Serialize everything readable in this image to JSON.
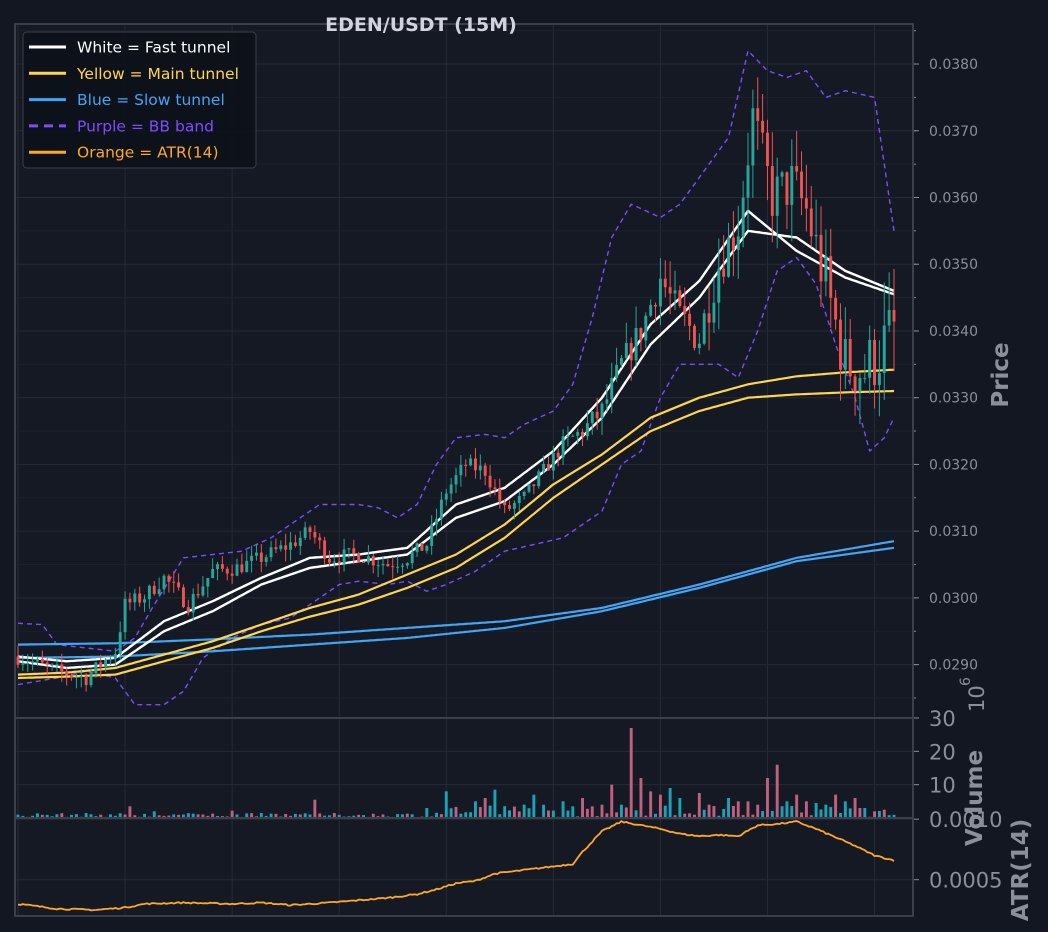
{
  "chart_data": {
    "type": "candlestick",
    "title": "EDEN/USDT (15M)",
    "price_axis": {
      "label": "Price",
      "ylim": [
        0.0282,
        0.0386
      ],
      "ticks": [
        "0.0290",
        "0.0300",
        "0.0310",
        "0.0320",
        "0.0330",
        "0.0340",
        "0.0350",
        "0.0360",
        "0.0370",
        "0.0380"
      ]
    },
    "volume_axis": {
      "label": "Volume",
      "exponent_label": "10",
      "exponent": "6",
      "ylim": [
        0,
        30
      ],
      "ticks": [
        "10",
        "20",
        "30"
      ]
    },
    "atr_axis": {
      "label": "ATR(14)",
      "ylim": [
        0.0002,
        0.00101
      ],
      "ticks": [
        "0.0005",
        "0.0010"
      ]
    },
    "x_range": [
      0,
      180
    ],
    "legend": {
      "placement": "top-left",
      "items": [
        {
          "label": "White = Fast tunnel",
          "color": "#ffffff",
          "dash": false
        },
        {
          "label": "Yellow = Main tunnel",
          "color": "#ffd54f",
          "dash": false
        },
        {
          "label": "Blue = Slow tunnel",
          "color": "#42a5f5",
          "dash": false
        },
        {
          "label": "Purple = BB band",
          "color": "#7c4dff",
          "dash": true
        },
        {
          "label": "Orange = ATR(14)",
          "color": "#ffa726",
          "dash": false
        }
      ]
    },
    "price_keypoints": [
      [
        0,
        0.02912
      ],
      [
        8,
        0.0289
      ],
      [
        14,
        0.0288
      ],
      [
        20,
        0.0292
      ],
      [
        22,
        0.0299
      ],
      [
        26,
        0.03002
      ],
      [
        30,
        0.0303
      ],
      [
        35,
        0.0299
      ],
      [
        40,
        0.0304
      ],
      [
        45,
        0.03045
      ],
      [
        50,
        0.0306
      ],
      [
        56,
        0.0308
      ],
      [
        60,
        0.031
      ],
      [
        64,
        0.0306
      ],
      [
        70,
        0.03065
      ],
      [
        76,
        0.0305
      ],
      [
        80,
        0.0306
      ],
      [
        84,
        0.0308
      ],
      [
        88,
        0.0316
      ],
      [
        92,
        0.032
      ],
      [
        96,
        0.0319
      ],
      [
        100,
        0.0313
      ],
      [
        104,
        0.0315
      ],
      [
        108,
        0.0319
      ],
      [
        112,
        0.0323
      ],
      [
        116,
        0.0325
      ],
      [
        120,
        0.0328
      ],
      [
        124,
        0.0335
      ],
      [
        128,
        0.034
      ],
      [
        132,
        0.0348
      ],
      [
        136,
        0.0342
      ],
      [
        140,
        0.0339
      ],
      [
        144,
        0.035
      ],
      [
        148,
        0.0356
      ],
      [
        151,
        0.0372
      ],
      [
        155,
        0.036
      ],
      [
        159,
        0.0362
      ],
      [
        162,
        0.0358
      ],
      [
        166,
        0.0347
      ],
      [
        170,
        0.0335
      ],
      [
        174,
        0.0334
      ],
      [
        178,
        0.0338
      ],
      [
        180,
        0.034
      ]
    ],
    "fast_upper": [
      [
        0,
        0.02912
      ],
      [
        10,
        0.02905
      ],
      [
        20,
        0.0291
      ],
      [
        30,
        0.02965
      ],
      [
        40,
        0.02995
      ],
      [
        50,
        0.0303
      ],
      [
        60,
        0.0306
      ],
      [
        70,
        0.03065
      ],
      [
        80,
        0.03075
      ],
      [
        90,
        0.0314
      ],
      [
        100,
        0.03165
      ],
      [
        110,
        0.0322
      ],
      [
        120,
        0.033
      ],
      [
        130,
        0.0341
      ],
      [
        140,
        0.03475
      ],
      [
        150,
        0.0358
      ],
      [
        160,
        0.0352
      ],
      [
        170,
        0.0348
      ],
      [
        180,
        0.03455
      ]
    ],
    "fast_lower": [
      [
        0,
        0.02905
      ],
      [
        10,
        0.02895
      ],
      [
        20,
        0.029
      ],
      [
        30,
        0.0295
      ],
      [
        40,
        0.0298
      ],
      [
        50,
        0.0302
      ],
      [
        60,
        0.03045
      ],
      [
        70,
        0.03055
      ],
      [
        80,
        0.03065
      ],
      [
        90,
        0.0312
      ],
      [
        100,
        0.03145
      ],
      [
        110,
        0.032
      ],
      [
        120,
        0.0327
      ],
      [
        130,
        0.0338
      ],
      [
        140,
        0.0345
      ],
      [
        150,
        0.0355
      ],
      [
        160,
        0.0354
      ],
      [
        170,
        0.0349
      ],
      [
        180,
        0.0346
      ]
    ],
    "main_upper": [
      [
        0,
        0.02885
      ],
      [
        10,
        0.02888
      ],
      [
        20,
        0.02895
      ],
      [
        30,
        0.02915
      ],
      [
        40,
        0.02935
      ],
      [
        50,
        0.0296
      ],
      [
        60,
        0.02985
      ],
      [
        70,
        0.03005
      ],
      [
        80,
        0.03035
      ],
      [
        90,
        0.03065
      ],
      [
        100,
        0.0311
      ],
      [
        110,
        0.0317
      ],
      [
        120,
        0.03215
      ],
      [
        130,
        0.0327
      ],
      [
        140,
        0.033
      ],
      [
        150,
        0.0332
      ],
      [
        160,
        0.03332
      ],
      [
        170,
        0.03338
      ],
      [
        180,
        0.03342
      ]
    ],
    "main_lower": [
      [
        0,
        0.0288
      ],
      [
        10,
        0.02882
      ],
      [
        20,
        0.02885
      ],
      [
        30,
        0.02905
      ],
      [
        40,
        0.02925
      ],
      [
        50,
        0.0295
      ],
      [
        60,
        0.02972
      ],
      [
        70,
        0.0299
      ],
      [
        80,
        0.03015
      ],
      [
        90,
        0.03045
      ],
      [
        100,
        0.0309
      ],
      [
        110,
        0.0315
      ],
      [
        120,
        0.032
      ],
      [
        130,
        0.0325
      ],
      [
        140,
        0.0328
      ],
      [
        150,
        0.033
      ],
      [
        160,
        0.03305
      ],
      [
        170,
        0.03308
      ],
      [
        180,
        0.0331
      ]
    ],
    "slow_upper": [
      [
        0,
        0.0293
      ],
      [
        20,
        0.02932
      ],
      [
        40,
        0.02938
      ],
      [
        60,
        0.02945
      ],
      [
        80,
        0.02955
      ],
      [
        100,
        0.02965
      ],
      [
        120,
        0.02985
      ],
      [
        140,
        0.0302
      ],
      [
        160,
        0.0306
      ],
      [
        180,
        0.03085
      ]
    ],
    "slow_lower": [
      [
        0,
        0.0291
      ],
      [
        20,
        0.02912
      ],
      [
        40,
        0.0292
      ],
      [
        60,
        0.0293
      ],
      [
        80,
        0.0294
      ],
      [
        100,
        0.02955
      ],
      [
        120,
        0.0298
      ],
      [
        140,
        0.03015
      ],
      [
        160,
        0.03055
      ],
      [
        180,
        0.03075
      ]
    ],
    "bb_upper": [
      [
        0,
        0.02962
      ],
      [
        5,
        0.0296
      ],
      [
        8,
        0.0293
      ],
      [
        20,
        0.0292
      ],
      [
        24,
        0.0294
      ],
      [
        28,
        0.0299
      ],
      [
        34,
        0.0306
      ],
      [
        40,
        0.03065
      ],
      [
        46,
        0.0307
      ],
      [
        52,
        0.0309
      ],
      [
        58,
        0.0312
      ],
      [
        62,
        0.0314
      ],
      [
        70,
        0.0314
      ],
      [
        74,
        0.03135
      ],
      [
        78,
        0.0312
      ],
      [
        82,
        0.0314
      ],
      [
        86,
        0.032
      ],
      [
        90,
        0.0324
      ],
      [
        96,
        0.03245
      ],
      [
        100,
        0.0324
      ],
      [
        104,
        0.0326
      ],
      [
        110,
        0.0328
      ],
      [
        114,
        0.0332
      ],
      [
        118,
        0.0342
      ],
      [
        122,
        0.0354
      ],
      [
        126,
        0.0359
      ],
      [
        132,
        0.0357
      ],
      [
        136,
        0.0359
      ],
      [
        140,
        0.0363
      ],
      [
        146,
        0.0369
      ],
      [
        150,
        0.0382
      ],
      [
        154,
        0.0379
      ],
      [
        158,
        0.0378
      ],
      [
        162,
        0.0379
      ],
      [
        166,
        0.0375
      ],
      [
        170,
        0.0376
      ],
      [
        176,
        0.0375
      ],
      [
        180,
        0.0355
      ]
    ],
    "bb_lower": [
      [
        0,
        0.0287
      ],
      [
        8,
        0.0288
      ],
      [
        14,
        0.0289
      ],
      [
        20,
        0.0288
      ],
      [
        24,
        0.0284
      ],
      [
        30,
        0.0284
      ],
      [
        34,
        0.0286
      ],
      [
        38,
        0.0291
      ],
      [
        44,
        0.0294
      ],
      [
        50,
        0.0296
      ],
      [
        56,
        0.0297
      ],
      [
        60,
        0.0299
      ],
      [
        66,
        0.0302
      ],
      [
        70,
        0.03025
      ],
      [
        76,
        0.0302
      ],
      [
        80,
        0.03025
      ],
      [
        84,
        0.0301
      ],
      [
        88,
        0.0302
      ],
      [
        94,
        0.0304
      ],
      [
        100,
        0.0307
      ],
      [
        106,
        0.0308
      ],
      [
        112,
        0.0309
      ],
      [
        116,
        0.0311
      ],
      [
        120,
        0.0313
      ],
      [
        124,
        0.032
      ],
      [
        128,
        0.0322
      ],
      [
        132,
        0.033
      ],
      [
        136,
        0.0335
      ],
      [
        144,
        0.0335
      ],
      [
        148,
        0.0333
      ],
      [
        152,
        0.034
      ],
      [
        156,
        0.0349
      ],
      [
        160,
        0.0351
      ],
      [
        164,
        0.0347
      ],
      [
        168,
        0.0338
      ],
      [
        172,
        0.033
      ],
      [
        175,
        0.0322
      ],
      [
        178,
        0.0324
      ],
      [
        180,
        0.0327
      ]
    ],
    "atr_keypoints": [
      [
        0,
        0.0003
      ],
      [
        8,
        0.00026
      ],
      [
        16,
        0.00025
      ],
      [
        22,
        0.00027
      ],
      [
        26,
        0.0003
      ],
      [
        34,
        0.00031
      ],
      [
        44,
        0.0003
      ],
      [
        50,
        0.00031
      ],
      [
        56,
        0.00029
      ],
      [
        60,
        0.0003
      ],
      [
        64,
        0.00031
      ],
      [
        70,
        0.00033
      ],
      [
        76,
        0.00035
      ],
      [
        82,
        0.00038
      ],
      [
        86,
        0.00042
      ],
      [
        90,
        0.00047
      ],
      [
        94,
        0.00049
      ],
      [
        98,
        0.00055
      ],
      [
        104,
        0.00058
      ],
      [
        110,
        0.00061
      ],
      [
        114,
        0.00063
      ],
      [
        116,
        0.00073
      ],
      [
        120,
        0.0009
      ],
      [
        124,
        0.00098
      ],
      [
        128,
        0.00095
      ],
      [
        132,
        0.00092
      ],
      [
        136,
        0.00088
      ],
      [
        140,
        0.00086
      ],
      [
        144,
        0.00087
      ],
      [
        148,
        0.00086
      ],
      [
        152,
        0.00095
      ],
      [
        156,
        0.00096
      ],
      [
        160,
        0.00098
      ],
      [
        164,
        0.00092
      ],
      [
        168,
        0.00085
      ],
      [
        172,
        0.00078
      ],
      [
        176,
        0.0007
      ],
      [
        180,
        0.00066
      ]
    ],
    "volume_spikes": [
      [
        23,
        3.5
      ],
      [
        28,
        2
      ],
      [
        44,
        2.2
      ],
      [
        61,
        5.5
      ],
      [
        84,
        3
      ],
      [
        88,
        8
      ],
      [
        94,
        5
      ],
      [
        96,
        6
      ],
      [
        98,
        8.5
      ],
      [
        104,
        4
      ],
      [
        106,
        7
      ],
      [
        108,
        4
      ],
      [
        112,
        5
      ],
      [
        116,
        6
      ],
      [
        118,
        3.5
      ],
      [
        120,
        4
      ],
      [
        122,
        10
      ],
      [
        124,
        4
      ],
      [
        126,
        27
      ],
      [
        128,
        12
      ],
      [
        130,
        8
      ],
      [
        132,
        7
      ],
      [
        134,
        9
      ],
      [
        136,
        6
      ],
      [
        140,
        7.5
      ],
      [
        142,
        4
      ],
      [
        146,
        6
      ],
      [
        148,
        5
      ],
      [
        150,
        5
      ],
      [
        152,
        4
      ],
      [
        154,
        12
      ],
      [
        156,
        16
      ],
      [
        158,
        5
      ],
      [
        160,
        7
      ],
      [
        162,
        5
      ],
      [
        164,
        4.5
      ],
      [
        166,
        4
      ],
      [
        168,
        7
      ],
      [
        170,
        5
      ],
      [
        172,
        6
      ],
      [
        174,
        3
      ],
      [
        176,
        2
      ],
      [
        178,
        2.5
      ]
    ]
  },
  "colors": {
    "bg": "#131722",
    "frame": "#3a3f4b",
    "grid": "#262b37",
    "axis_text": "#8a8f9a",
    "up": "#26a69a",
    "down": "#ef5350",
    "title": "#d1d4dc"
  }
}
